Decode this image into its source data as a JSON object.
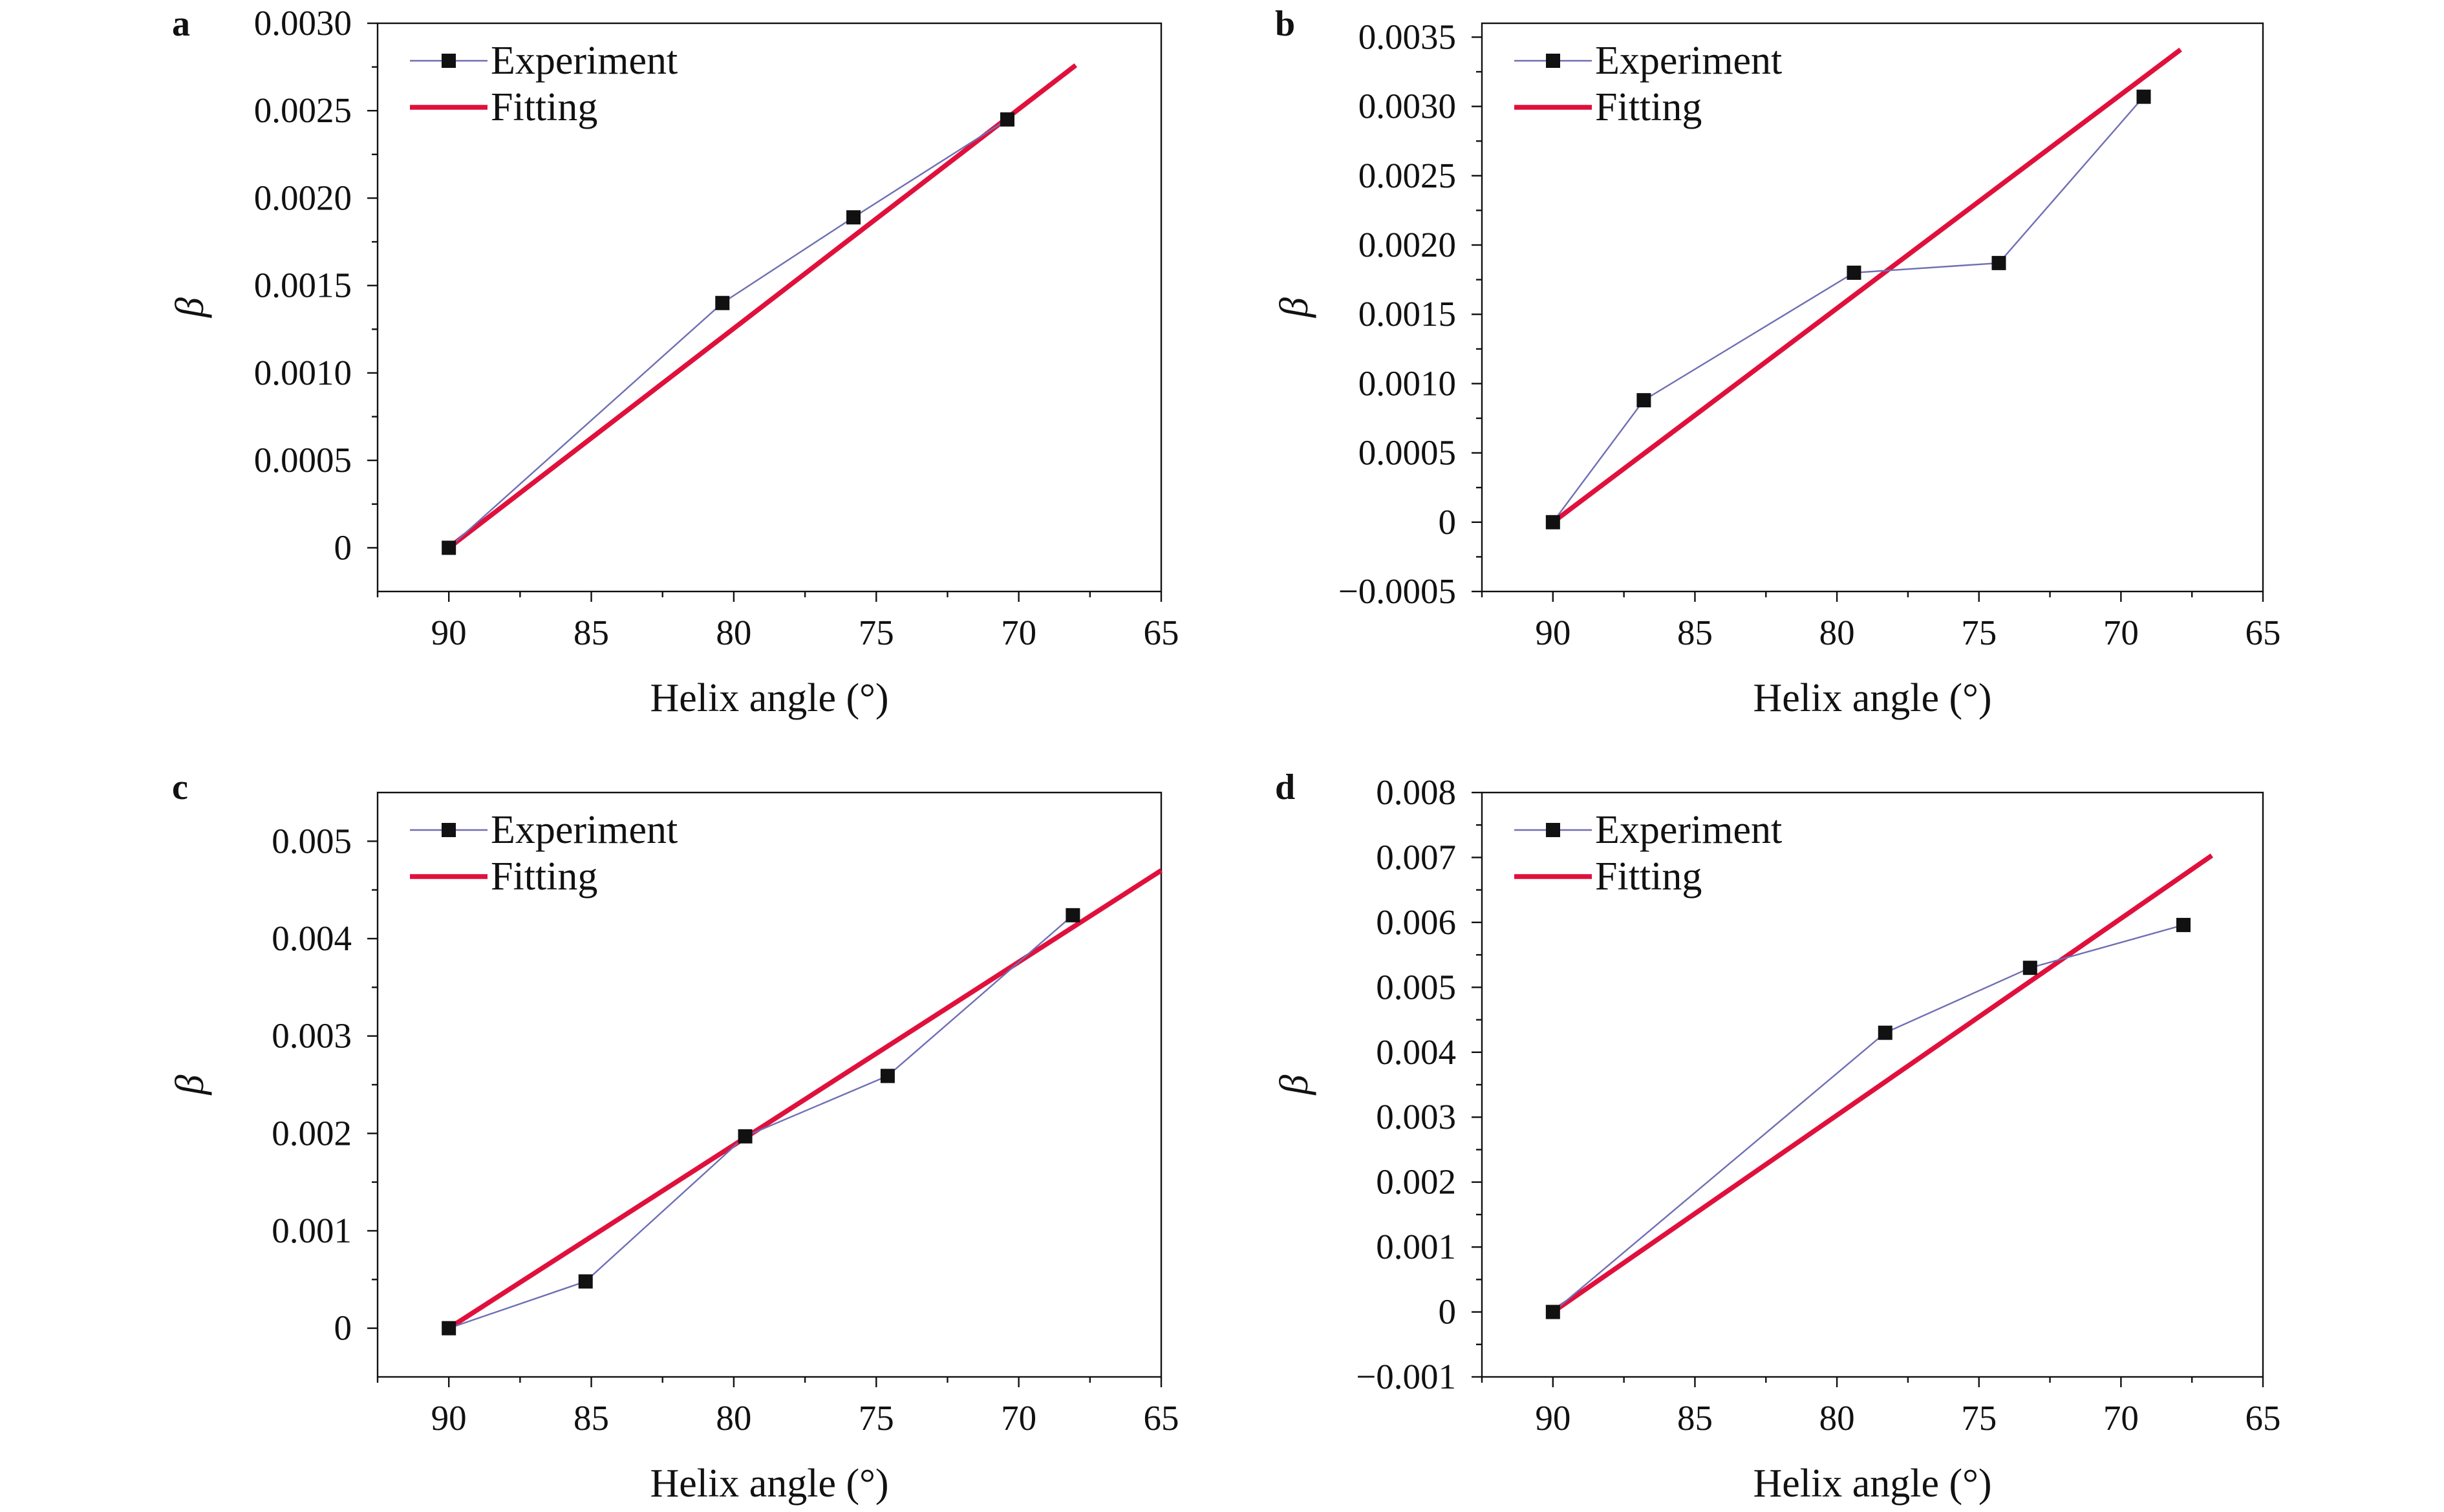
{
  "colors": {
    "experiment_line": "#6f6fb4",
    "experiment_marker": "#111111",
    "fitting_line": "#e0103c",
    "axes": "#111111",
    "background": "#ffffff"
  },
  "chart_data": [
    {
      "panel": "a",
      "type": "line",
      "xlabel": "Helix angle (°)",
      "ylabel": "β",
      "xlim": [
        92.5,
        65
      ],
      "x_reversed": true,
      "ylim": [
        -0.00025,
        0.003
      ],
      "xticks": [
        90,
        85,
        80,
        75,
        70,
        65
      ],
      "yticks": [
        0,
        0.0005,
        0.001,
        0.0015,
        0.002,
        0.0025,
        0.003
      ],
      "ytick_labels": [
        "0",
        "0.0005",
        "0.0010",
        "0.0015",
        "0.0020",
        "0.0025",
        "0.0030"
      ],
      "legend": [
        "Experiment",
        "Fitting"
      ],
      "legend_position": "top-left",
      "series": [
        {
          "name": "Experiment",
          "style": "line+square-marker",
          "x": [
            90,
            80.4,
            75.8,
            70.4
          ],
          "y": [
            0,
            0.0014,
            0.00189,
            0.00245
          ]
        },
        {
          "name": "Fitting",
          "style": "line",
          "x": [
            90,
            68.0
          ],
          "y": [
            0,
            0.00276
          ]
        }
      ]
    },
    {
      "panel": "b",
      "type": "line",
      "xlabel": "Helix angle (°)",
      "ylabel": "β",
      "xlim": [
        92.5,
        65
      ],
      "x_reversed": true,
      "ylim": [
        -0.0005,
        0.0036
      ],
      "xticks": [
        90,
        85,
        80,
        75,
        70,
        65
      ],
      "yticks": [
        -0.0005,
        0,
        0.0005,
        0.001,
        0.0015,
        0.002,
        0.0025,
        0.003,
        0.0035
      ],
      "ytick_labels": [
        "−0.0005",
        "0",
        "0.0005",
        "0.0010",
        "0.0015",
        "0.0020",
        "0.0025",
        "0.0030",
        "0.0035"
      ],
      "legend": [
        "Experiment",
        "Fitting"
      ],
      "legend_position": "top-left",
      "series": [
        {
          "name": "Experiment",
          "style": "line+square-marker",
          "x": [
            90,
            86.8,
            79.4,
            74.3,
            69.2
          ],
          "y": [
            0,
            0.00088,
            0.0018,
            0.00187,
            0.00307
          ]
        },
        {
          "name": "Fitting",
          "style": "line",
          "x": [
            90,
            67.9
          ],
          "y": [
            0,
            0.00341
          ]
        }
      ]
    },
    {
      "panel": "c",
      "type": "line",
      "xlabel": "Helix angle (°)",
      "ylabel": "β",
      "xlim": [
        92.5,
        65
      ],
      "x_reversed": true,
      "ylim": [
        -0.0005,
        0.0055
      ],
      "xticks": [
        90,
        85,
        80,
        75,
        70,
        65
      ],
      "yticks": [
        0,
        0.001,
        0.002,
        0.003,
        0.004,
        0.005
      ],
      "ytick_labels": [
        "0",
        "0.001",
        "0.002",
        "0.003",
        "0.004",
        "0.005"
      ],
      "legend": [
        "Experiment",
        "Fitting"
      ],
      "legend_position": "top-left",
      "series": [
        {
          "name": "Experiment",
          "style": "line+square-marker",
          "x": [
            90,
            85.2,
            79.6,
            74.6,
            68.1
          ],
          "y": [
            0,
            0.00048,
            0.00197,
            0.00259,
            0.00424
          ]
        },
        {
          "name": "Fitting",
          "style": "line",
          "x": [
            90,
            65
          ],
          "y": [
            0,
            0.0047
          ]
        }
      ]
    },
    {
      "panel": "d",
      "type": "line",
      "xlabel": "Helix angle (°)",
      "ylabel": "β",
      "xlim": [
        92.5,
        65
      ],
      "x_reversed": true,
      "ylim": [
        -0.001,
        0.008
      ],
      "xticks": [
        90,
        85,
        80,
        75,
        70,
        65
      ],
      "yticks": [
        -0.001,
        0,
        0.001,
        0.002,
        0.003,
        0.004,
        0.005,
        0.006,
        0.007,
        0.008
      ],
      "ytick_labels": [
        "−0.001",
        "0",
        "0.001",
        "0.002",
        "0.003",
        "0.004",
        "0.005",
        "0.006",
        "0.007",
        "0.008"
      ],
      "legend": [
        "Experiment",
        "Fitting"
      ],
      "legend_position": "top-left",
      "series": [
        {
          "name": "Experiment",
          "style": "line+square-marker",
          "x": [
            90,
            78.3,
            73.2,
            67.8
          ],
          "y": [
            0,
            0.0043,
            0.0053,
            0.00596
          ]
        },
        {
          "name": "Fitting",
          "style": "line",
          "x": [
            90,
            66.8
          ],
          "y": [
            0,
            0.00703
          ]
        }
      ]
    }
  ]
}
